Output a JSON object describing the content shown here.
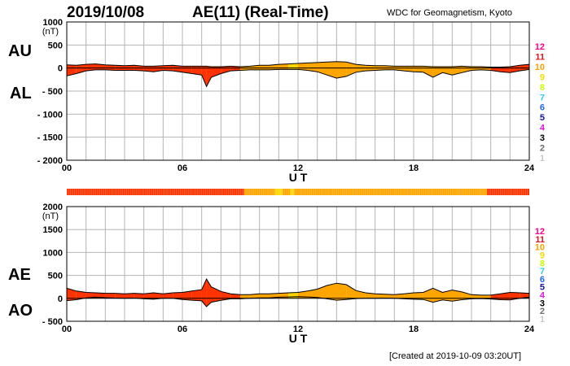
{
  "header": {
    "date": "2019/10/08",
    "title": "AE(11) (Real-Time)",
    "credit": "WDC for Geomagnetism, Kyoto"
  },
  "footer": {
    "created": "[Created at 2019-10-09 03:20UT]"
  },
  "colors": {
    "red": "#ff3300",
    "orange": "#ffa500",
    "yellow": "#ffd700",
    "grid": "#b4b4b4"
  },
  "station_scale": [
    {
      "label": "12",
      "color": "#ff0088"
    },
    {
      "label": "11",
      "color": "#e0141e"
    },
    {
      "label": "10",
      "color": "#ffa000"
    },
    {
      "label": "9",
      "color": "#f0dc00"
    },
    {
      "label": "8",
      "color": "#c8ff00"
    },
    {
      "label": "7",
      "color": "#2ecce8"
    },
    {
      "label": "6",
      "color": "#1e64ff"
    },
    {
      "label": "5",
      "color": "#1414a0"
    },
    {
      "label": "4",
      "color": "#e614e6"
    },
    {
      "label": "3",
      "color": "#000000"
    },
    {
      "label": "2",
      "color": "#6e6e6e"
    },
    {
      "label": "1",
      "color": "#c8c8c8"
    }
  ],
  "chart_data": [
    {
      "type": "area",
      "name": "AU/AL",
      "label_upper": "AU",
      "label_lower": "AL",
      "xlabel": "U T",
      "ylabel": "(nT)",
      "xlim": [
        0,
        24
      ],
      "ylim": [
        -2000,
        1000
      ],
      "xticks": [
        "00",
        "06",
        "12",
        "18",
        "24"
      ],
      "yticks": [
        "1000",
        "500",
        "0",
        "- 500",
        "- 1000",
        "- 1500",
        "- 2000"
      ],
      "grid": true,
      "x": [
        0,
        0.5,
        1,
        1.5,
        2,
        2.5,
        3,
        3.5,
        4,
        4.5,
        5,
        5.5,
        6,
        6.5,
        7,
        7.25,
        7.5,
        8,
        8.5,
        9,
        9.5,
        10,
        10.5,
        11,
        11.5,
        12,
        12.5,
        13,
        13.5,
        14,
        14.5,
        15,
        15.5,
        16,
        16.5,
        17,
        17.5,
        18,
        18.5,
        19,
        19.5,
        20,
        20.5,
        21,
        21.5,
        22,
        22.5,
        23,
        23.5,
        24
      ],
      "series": [
        {
          "values": [
            70,
            60,
            80,
            90,
            70,
            60,
            50,
            60,
            40,
            40,
            50,
            60,
            40,
            40,
            40,
            40,
            30,
            30,
            40,
            30,
            40,
            60,
            60,
            80,
            90,
            100,
            110,
            120,
            130,
            140,
            130,
            80,
            60,
            50,
            50,
            40,
            40,
            40,
            40,
            30,
            30,
            30,
            40,
            30,
            30,
            20,
            20,
            30,
            60,
            80
          ]
        },
        {
          "values": [
            -170,
            -120,
            -60,
            -40,
            -40,
            -50,
            -50,
            -50,
            -60,
            -80,
            -50,
            -60,
            -90,
            -120,
            -150,
            -400,
            -200,
            -120,
            -60,
            -50,
            -40,
            -40,
            -40,
            -30,
            -30,
            -30,
            -50,
            -80,
            -150,
            -220,
            -180,
            -90,
            -60,
            -50,
            -40,
            -40,
            -60,
            -80,
            -90,
            -200,
            -100,
            -150,
            -100,
            -50,
            -40,
            -50,
            -80,
            -100,
            -60,
            -30
          ]
        }
      ]
    },
    {
      "type": "area",
      "name": "AE/AO",
      "label_upper": "AE",
      "label_lower": "AO",
      "xlabel": "U T",
      "ylabel": "(nT)",
      "xlim": [
        0,
        24
      ],
      "ylim": [
        -500,
        2000
      ],
      "xticks": [
        "00",
        "06",
        "12",
        "18",
        "24"
      ],
      "yticks": [
        "2000",
        "1500",
        "1000",
        "500",
        "0",
        "- 500"
      ],
      "grid": true,
      "x": [
        0,
        0.5,
        1,
        1.5,
        2,
        2.5,
        3,
        3.5,
        4,
        4.5,
        5,
        5.5,
        6,
        6.5,
        7,
        7.25,
        7.5,
        8,
        8.5,
        9,
        9.5,
        10,
        10.5,
        11,
        11.5,
        12,
        12.5,
        13,
        13.5,
        14,
        14.5,
        15,
        15.5,
        16,
        16.5,
        17,
        17.5,
        18,
        18.5,
        19,
        19.5,
        20,
        20.5,
        21,
        21.5,
        22,
        22.5,
        23,
        23.5,
        24
      ],
      "series": [
        {
          "values": [
            220,
            160,
            130,
            120,
            110,
            110,
            100,
            110,
            100,
            120,
            100,
            120,
            130,
            160,
            190,
            420,
            250,
            150,
            100,
            80,
            80,
            100,
            100,
            110,
            120,
            130,
            160,
            200,
            280,
            330,
            300,
            170,
            120,
            100,
            90,
            80,
            100,
            120,
            130,
            220,
            130,
            180,
            140,
            80,
            70,
            70,
            100,
            130,
            120,
            110
          ]
        },
        {
          "values": [
            -50,
            -30,
            10,
            25,
            15,
            5,
            0,
            5,
            -10,
            -20,
            0,
            0,
            -25,
            -40,
            -55,
            -180,
            -85,
            -45,
            -10,
            -10,
            0,
            10,
            10,
            25,
            30,
            35,
            30,
            20,
            -10,
            -40,
            -25,
            -5,
            0,
            0,
            5,
            0,
            -10,
            -20,
            -25,
            -85,
            -35,
            -60,
            -30,
            -10,
            -5,
            -15,
            -30,
            -35,
            0,
            25
          ]
        }
      ]
    }
  ],
  "station_band": {
    "segments": [
      {
        "start": 0,
        "end": 9.2,
        "color": "#ff3300"
      },
      {
        "start": 9.2,
        "end": 10.8,
        "color": "#ffa500"
      },
      {
        "start": 10.8,
        "end": 11.2,
        "color": "#ffd700"
      },
      {
        "start": 11.2,
        "end": 11.6,
        "color": "#ffa500"
      },
      {
        "start": 11.6,
        "end": 11.8,
        "color": "#ffd700"
      },
      {
        "start": 11.8,
        "end": 21.8,
        "color": "#ffa500"
      },
      {
        "start": 21.8,
        "end": 24,
        "color": "#ff3300"
      }
    ]
  }
}
